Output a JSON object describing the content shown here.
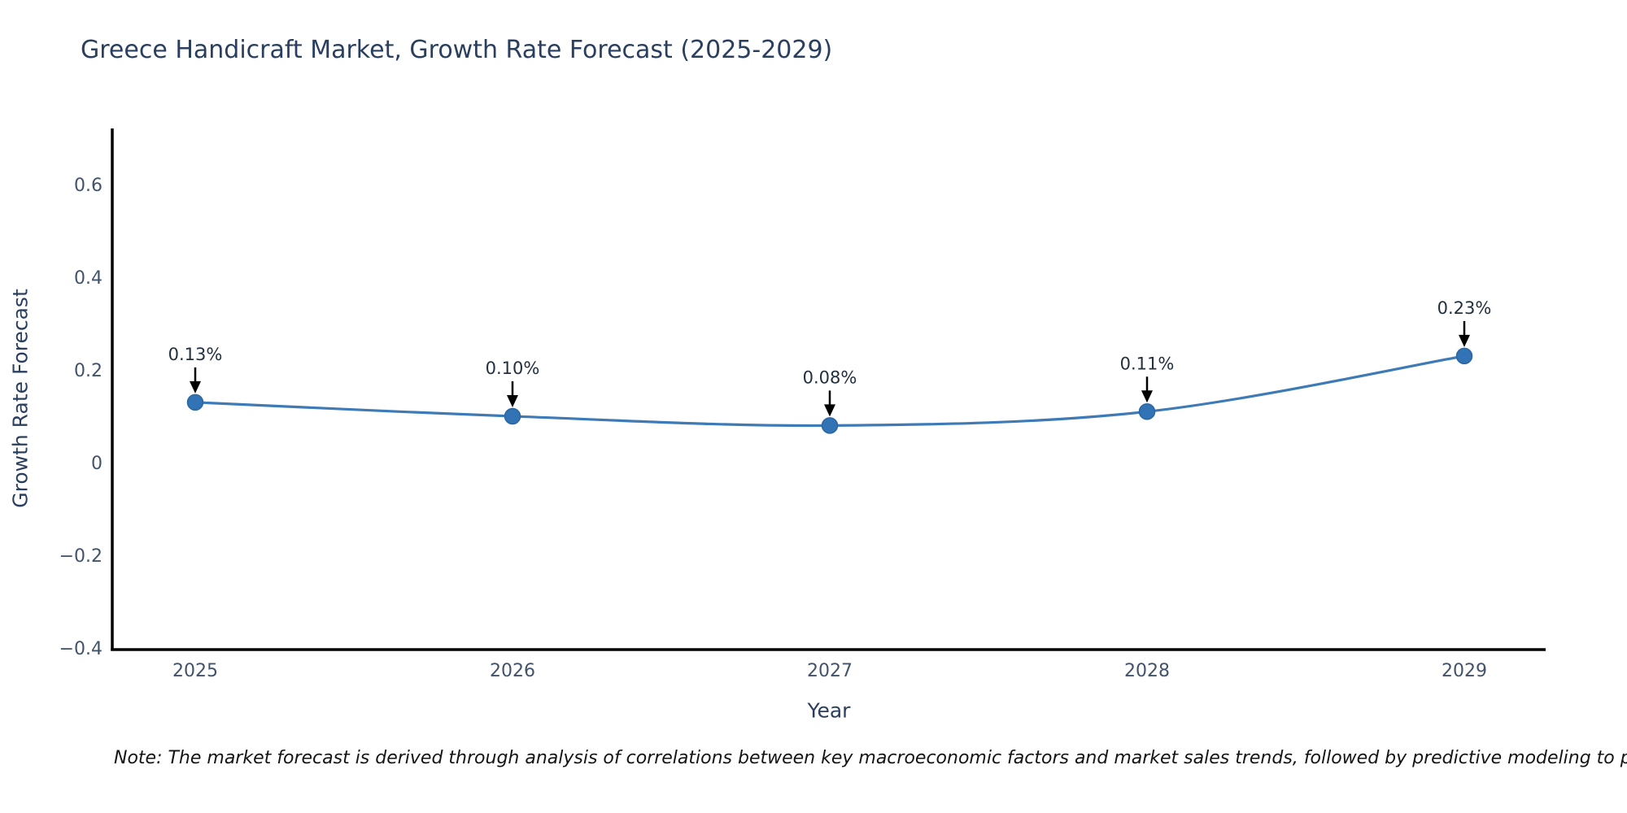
{
  "chart_data": {
    "type": "line",
    "title": "Greece Handicraft Market, Growth Rate Forecast (2025-2029)",
    "xlabel": "Year",
    "ylabel": "Growth Rate Forecast",
    "categories": [
      "2025",
      "2026",
      "2027",
      "2028",
      "2029"
    ],
    "series": [
      {
        "name": "Growth Rate Forecast",
        "values": [
          0.13,
          0.1,
          0.08,
          0.11,
          0.23
        ]
      }
    ],
    "point_labels": [
      "0.13%",
      "0.10%",
      "0.08%",
      "0.11%",
      "0.23%"
    ],
    "ytick_values": [
      0.6,
      0.4,
      0.2,
      0,
      -0.2,
      -0.4
    ],
    "ytick_labels": [
      "0.6",
      "0.4",
      "0.2",
      "0",
      "−0.2",
      "−0.4"
    ],
    "ylim": [
      -0.41,
      0.73
    ],
    "grid": false,
    "legend_position": "none",
    "line_color": "#3e7bb6",
    "marker_color": "#3173b4",
    "marker_edge_color": "#2b66a3",
    "annotation_arrow_color": "#000000",
    "spine_color": "#000000"
  },
  "note": {
    "text": "Note: The market forecast is derived through analysis of correlations between key macroeconomic factors and market sales trends, followed by predictive modeling to project future sa"
  },
  "colors": {
    "background": "#ffffff",
    "title": "#2a3f5f",
    "axis_label": "#2a3f5f",
    "tick_label": "#42536b",
    "annotation_text": "#22303f",
    "note_text": "#141414"
  }
}
